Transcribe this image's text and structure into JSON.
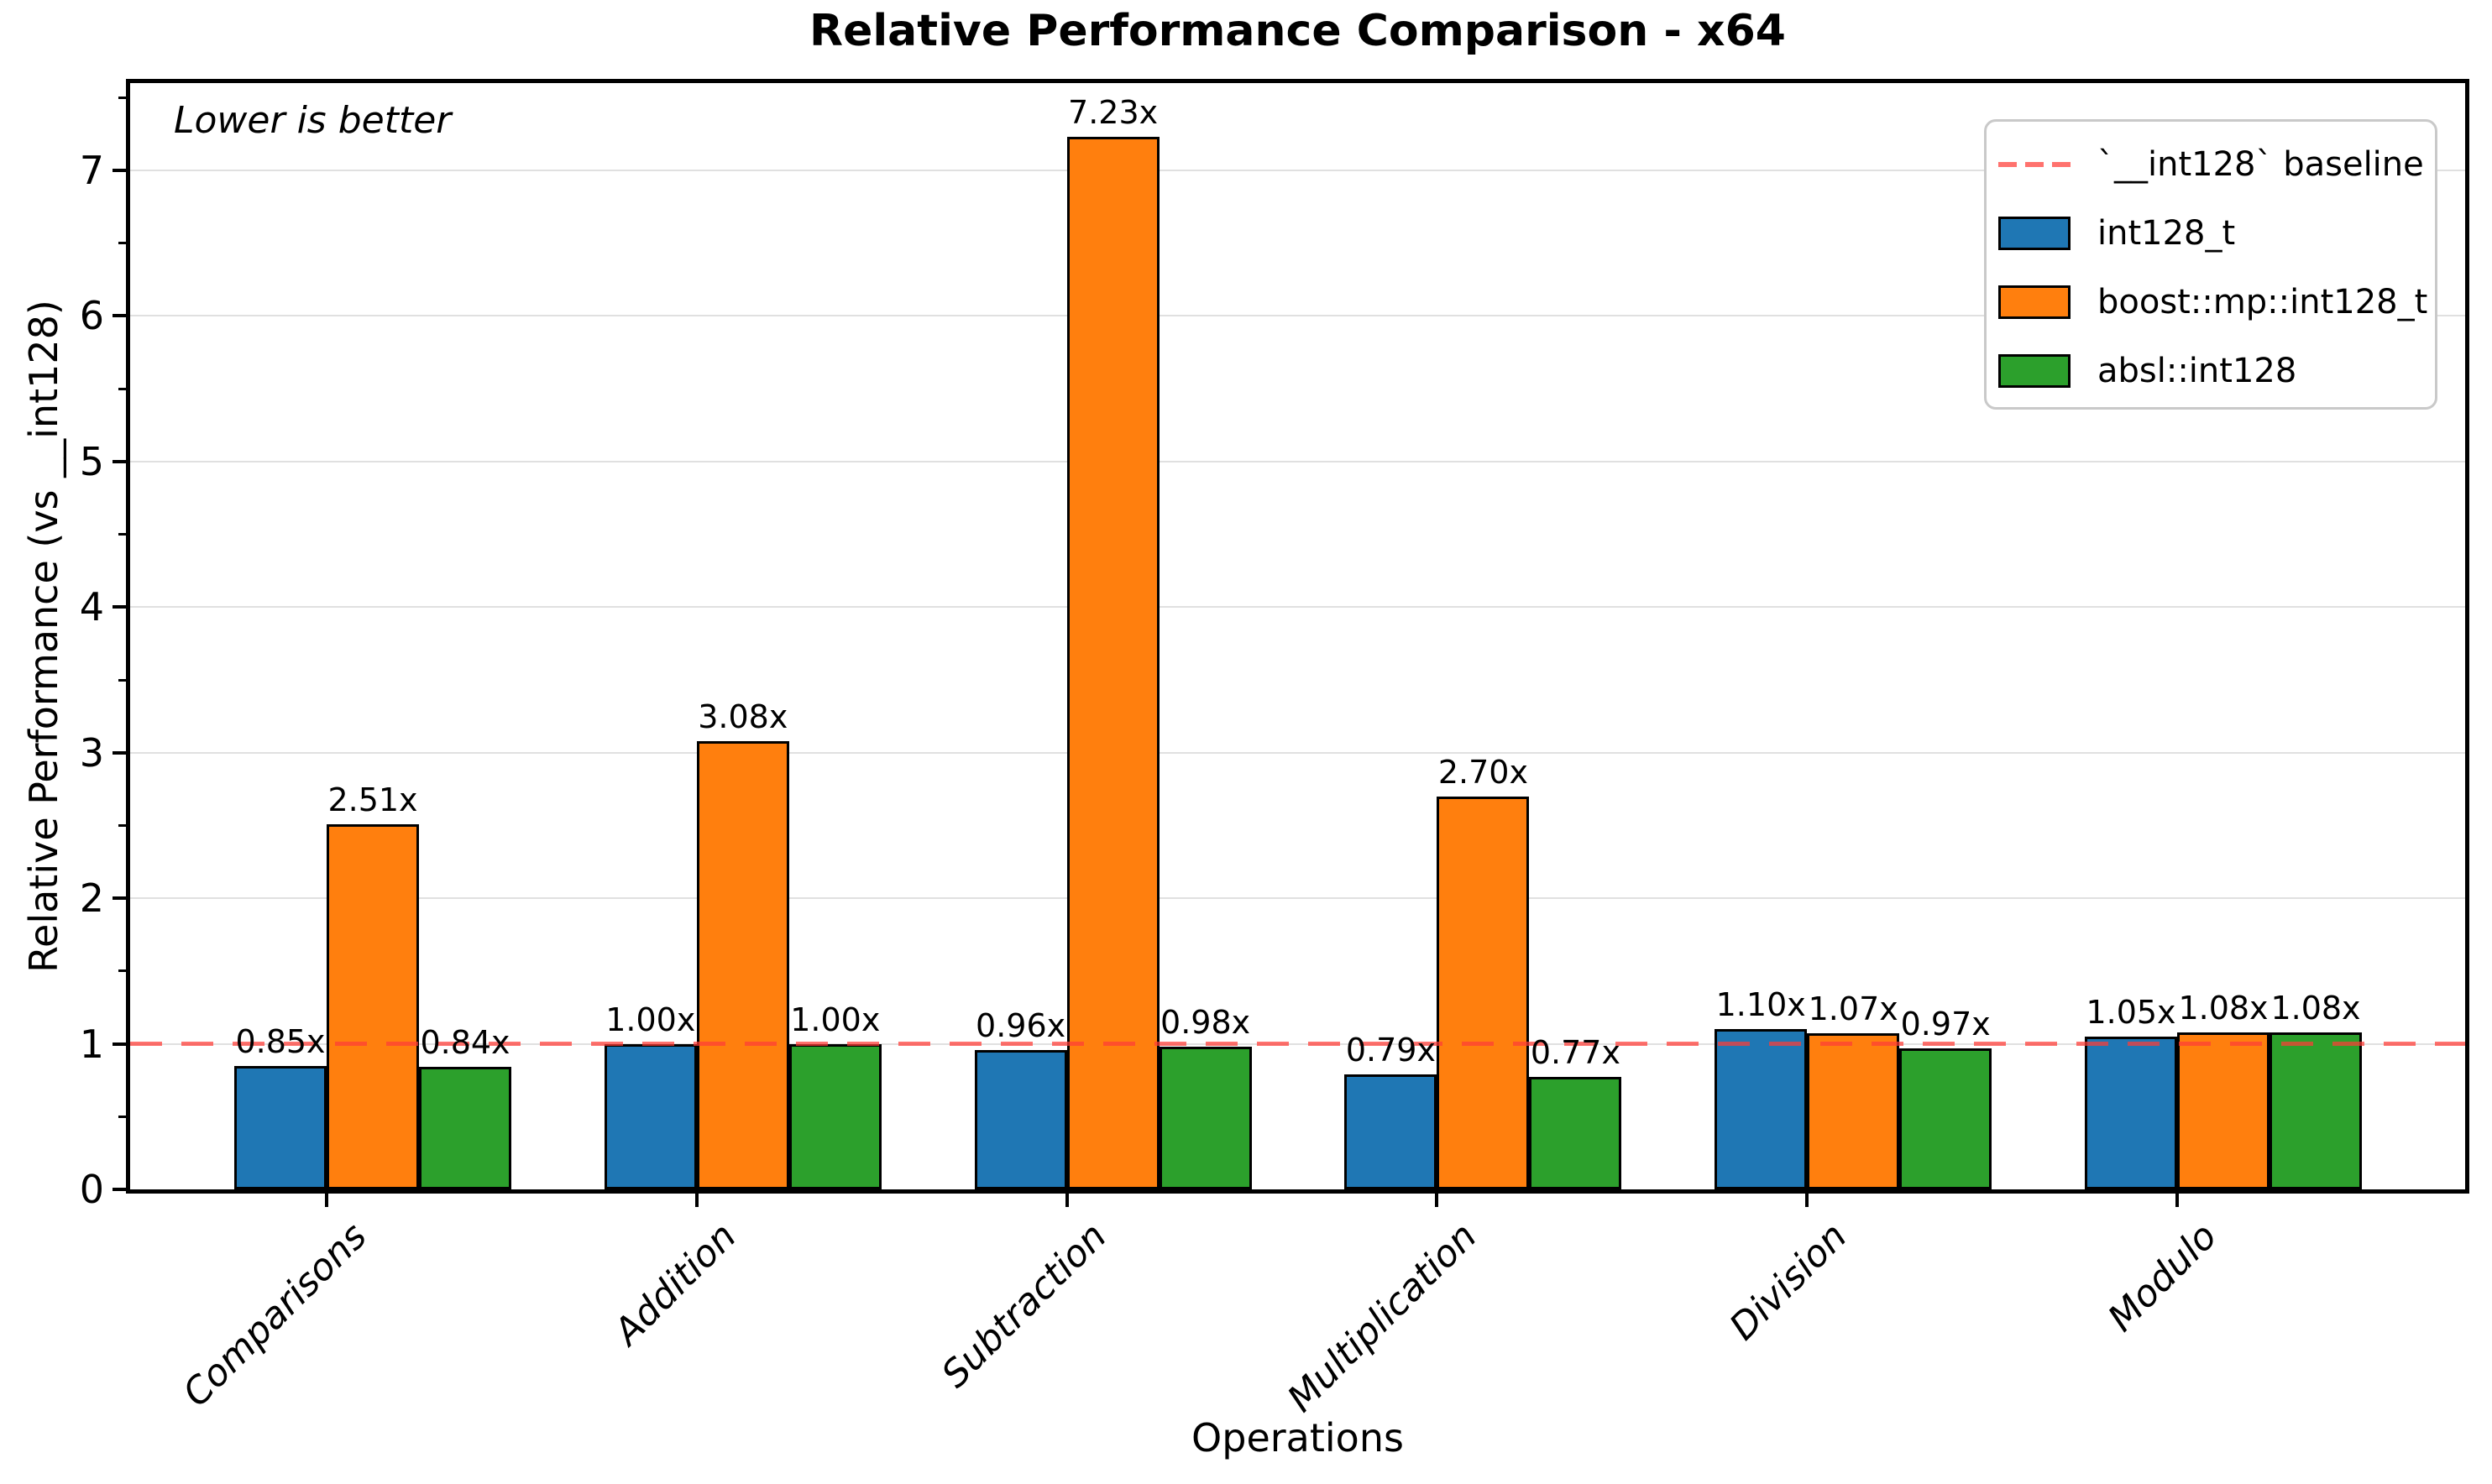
{
  "chart_data": {
    "type": "bar",
    "title": "Relative Performance Comparison - x64",
    "xlabel": "Operations",
    "ylabel": "Relative Performance (vs __int128)",
    "note": "Lower is better",
    "categories": [
      "Comparisons",
      "Addition",
      "Subtraction",
      "Multiplication",
      "Division",
      "Modulo"
    ],
    "series": [
      {
        "name": "int128_t",
        "color": "#1f77b4",
        "values": [
          0.85,
          1.0,
          0.96,
          0.79,
          1.1,
          1.05
        ],
        "labels": [
          "0.85x",
          "1.00x",
          "0.96x",
          "0.79x",
          "1.10x",
          "1.05x"
        ]
      },
      {
        "name": "boost::mp::int128_t",
        "color": "#ff7f0e",
        "values": [
          2.51,
          3.08,
          7.23,
          2.7,
          1.07,
          1.08
        ],
        "labels": [
          "2.51x",
          "3.08x",
          "7.23x",
          "2.70x",
          "1.07x",
          "1.08x"
        ]
      },
      {
        "name": "absl::int128",
        "color": "#2ca02c",
        "values": [
          0.84,
          1.0,
          0.98,
          0.77,
          0.97,
          1.08
        ],
        "labels": [
          "0.84x",
          "1.00x",
          "0.98x",
          "0.77x",
          "0.97x",
          "1.08x"
        ]
      }
    ],
    "baseline": {
      "value": 1,
      "label": "`__int128` baseline",
      "color": "#ff3c36",
      "opacity": 0.72,
      "style": "dashed"
    },
    "ylim": [
      0,
      7.6
    ],
    "yticks": [
      "0",
      "1",
      "2",
      "3",
      "4",
      "5",
      "6",
      "7"
    ],
    "minor_tick_step": 0.5,
    "grid": "horizontal-major",
    "grid_color": "#e0e0e0",
    "legend_position": "top-right-inside"
  }
}
